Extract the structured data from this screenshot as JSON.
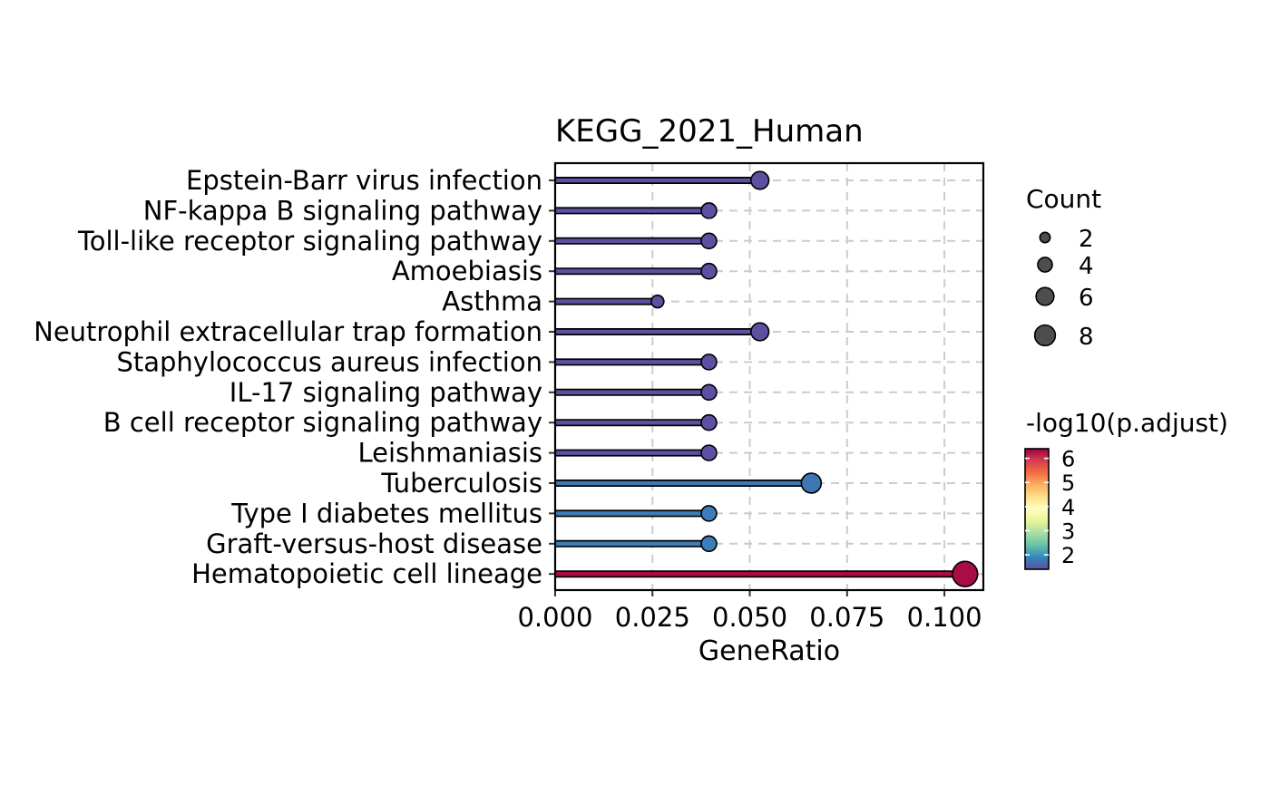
{
  "chart_data": {
    "type": "lollipop",
    "title": "KEGG_2021_Human",
    "xlabel": "GeneRatio",
    "ylabel": "",
    "xlim": [
      0,
      0.11
    ],
    "x_ticks": [
      0.0,
      0.025,
      0.05,
      0.075,
      0.1
    ],
    "x_tick_labels": [
      "0.000",
      "0.025",
      "0.050",
      "0.075",
      "0.100"
    ],
    "grid": true,
    "grid_style": "dashed",
    "categories": [
      "Epstein-Barr virus infection",
      "NF-kappa B signaling pathway",
      "Toll-like receptor signaling pathway",
      "Amoebiasis",
      "Asthma",
      "Neutrophil extracellular trap formation",
      "Staphylococcus aureus infection",
      "IL-17 signaling pathway",
      "B cell receptor signaling pathway",
      "Leishmaniasis",
      "Tuberculosis",
      "Type I diabetes mellitus",
      "Graft-versus-host disease",
      "Hematopoietic cell lineage"
    ],
    "gene_ratio": [
      0.0526,
      0.0395,
      0.0395,
      0.0395,
      0.0263,
      0.0526,
      0.0395,
      0.0395,
      0.0395,
      0.0395,
      0.0658,
      0.0395,
      0.0395,
      0.1053
    ],
    "count": [
      4,
      3,
      3,
      3,
      2,
      4,
      3,
      3,
      3,
      3,
      5,
      3,
      3,
      8
    ],
    "neg_log10_padj": [
      1.4,
      1.4,
      1.4,
      1.4,
      1.4,
      1.4,
      1.4,
      1.4,
      1.4,
      1.4,
      1.75,
      1.8,
      1.8,
      6.3
    ],
    "size_legend": {
      "title": "Count",
      "values": [
        2,
        4,
        6,
        8
      ],
      "labels": [
        "2",
        "4",
        "6",
        "8"
      ],
      "color": "#4d4d4d"
    },
    "color_legend": {
      "title": "-log10(p.adjust)",
      "range": [
        1.4,
        6.4
      ],
      "ticks": [
        2,
        3,
        4,
        5,
        6
      ],
      "labels": [
        "2",
        "3",
        "4",
        "5",
        "6"
      ],
      "palette": "Spectral (reversed)",
      "stops": [
        "#5E4FA2",
        "#3288BD",
        "#66C2A5",
        "#ABDDA4",
        "#E6F598",
        "#FFFFBF",
        "#FEE08B",
        "#FDAE61",
        "#F46D43",
        "#D53E4F",
        "#9E0142"
      ]
    }
  }
}
